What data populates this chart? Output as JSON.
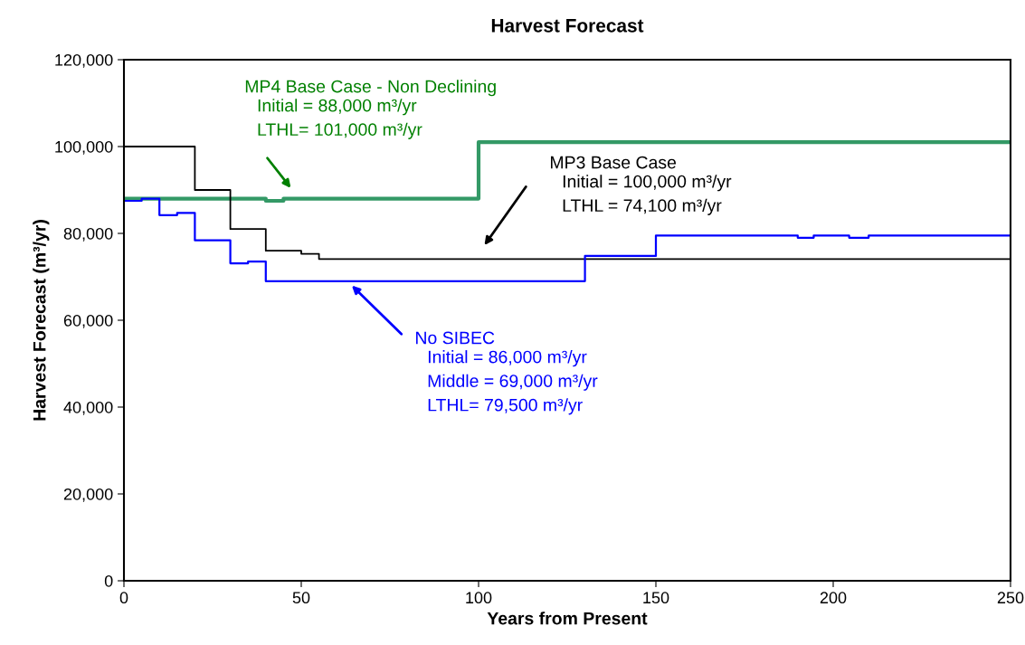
{
  "chart_data": {
    "type": "step",
    "title": "Harvest Forecast",
    "xlabel": "Years from Present",
    "ylabel": "Harvest Forecast (m³/yr)",
    "xlim": [
      0,
      250
    ],
    "xticks": [
      0,
      50,
      100,
      150,
      200,
      250
    ],
    "ylim": [
      0,
      120000
    ],
    "yticks": [
      {
        "value": 0,
        "label": "0"
      },
      {
        "value": 20000,
        "label": "20,000"
      },
      {
        "value": 40000,
        "label": "40,000"
      },
      {
        "value": 60000,
        "label": "60,000"
      },
      {
        "value": 80000,
        "label": "80,000"
      },
      {
        "value": 100000,
        "label": "100,000"
      },
      {
        "value": 120000,
        "label": "120,000"
      }
    ],
    "grid": false,
    "legend": false,
    "series": [
      {
        "name": "MP4 Base Case - Non Declining",
        "color": "#339966",
        "x": [
          0,
          40,
          45,
          100,
          250
        ],
        "values": [
          88000,
          87500,
          88000,
          101000,
          101000
        ]
      },
      {
        "name": "MP3 Base Case",
        "color": "#000000",
        "x": [
          0,
          20,
          30,
          40,
          50,
          55,
          250
        ],
        "values": [
          100000,
          90000,
          81000,
          76000,
          75300,
          74100,
          74100
        ]
      },
      {
        "name": "No SIBEC",
        "color": "#0000ff",
        "x": [
          0,
          5,
          10,
          15,
          20,
          30,
          35,
          40,
          130,
          150,
          190,
          194.5,
          204.5,
          210,
          250
        ],
        "values": [
          87500,
          88000,
          84200,
          84700,
          78400,
          73100,
          73500,
          69000,
          74800,
          79500,
          79000,
          79500,
          79000,
          79500,
          79500
        ]
      }
    ],
    "annotations": [
      "Initial = 88,000 m³/yr\nLTHL= 101,000 m³/yr",
      "Initial = 100,000 m³/yr\nLTHL = 74,100 m³/yr",
      "Initial = 86,000 m³/yr\nMiddle = 69,000 m³/yr\nLTHL= 79,500 m³/yr"
    ]
  }
}
